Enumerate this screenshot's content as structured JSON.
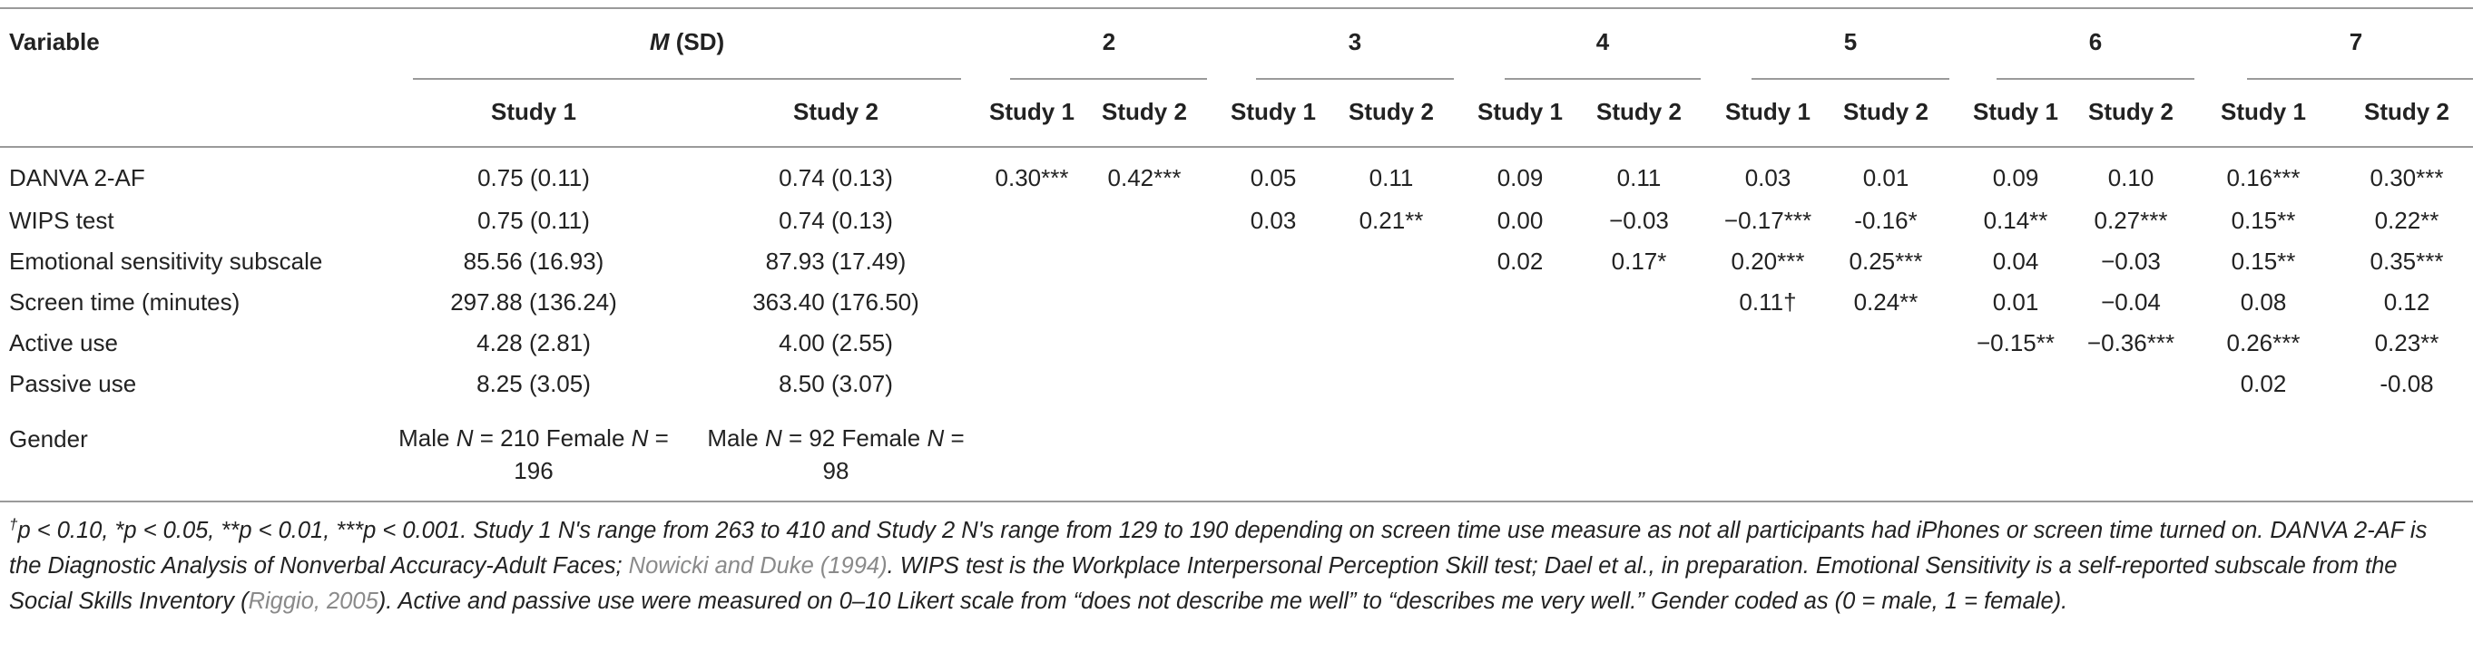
{
  "header": {
    "variable_label": "Variable",
    "msd_prefix": "M",
    "msd_suffix": " (SD)",
    "group_2": "2",
    "group_3": "3",
    "group_4": "4",
    "group_5": "5",
    "group_6": "6",
    "group_7": "7",
    "study1": "Study 1",
    "study2": "Study 2"
  },
  "rows": [
    {
      "variable": "DANVA 2-AF",
      "m1": "0.75 (0.11)",
      "m2": "0.74 (0.13)",
      "cells": [
        "0.30***",
        "0.42***",
        "0.05",
        "0.11",
        "0.09",
        "0.11",
        "0.03",
        "0.01",
        "0.09",
        "0.10",
        "0.16***",
        "0.30***"
      ]
    },
    {
      "variable": "WIPS test",
      "m1": "0.75 (0.11)",
      "m2": "0.74 (0.13)",
      "cells": [
        "",
        "",
        "0.03",
        "0.21**",
        "0.00",
        "−0.03",
        "−0.17***",
        "-0.16*",
        "0.14**",
        "0.27***",
        "0.15**",
        "0.22**"
      ]
    },
    {
      "variable": "Emotional sensitivity subscale",
      "m1": "85.56 (16.93)",
      "m2": "87.93 (17.49)",
      "cells": [
        "",
        "",
        "",
        "",
        "0.02",
        "0.17*",
        "0.20***",
        "0.25***",
        "0.04",
        "−0.03",
        "0.15**",
        "0.35***"
      ]
    },
    {
      "variable": "Screen time (minutes)",
      "m1": "297.88 (136.24)",
      "m2": "363.40 (176.50)",
      "cells": [
        "",
        "",
        "",
        "",
        "",
        "",
        "0.11†",
        "0.24**",
        "0.01",
        "−0.04",
        "0.08",
        "0.12"
      ]
    },
    {
      "variable": "Active use",
      "m1": "4.28 (2.81)",
      "m2": "4.00 (2.55)",
      "cells": [
        "",
        "",
        "",
        "",
        "",
        "",
        "",
        "",
        "−0.15**",
        "−0.36***",
        "0.26***",
        "0.23**"
      ]
    },
    {
      "variable": "Passive use",
      "m1": "8.25 (3.05)",
      "m2": "8.50 (3.07)",
      "cells": [
        "",
        "",
        "",
        "",
        "",
        "",
        "",
        "",
        "",
        "",
        "0.02",
        "-0.08"
      ]
    }
  ],
  "gender": {
    "variable": "Gender",
    "s1_a": "Male ",
    "s1_n1": "N",
    "s1_b": " = 210 Female",
    "s1_n2": "N",
    "s1_c": " = 196",
    "s2_a": "Male ",
    "s2_n1": "N",
    "s2_b": " = 92 Female",
    "s2_n2": "N",
    "s2_c": " = 98"
  },
  "footnote": {
    "sup_dagger": "†",
    "part1": "p < 0.10, *p < 0.05, **p < 0.01, ***p < 0.001. Study 1 N's range from 263 to 410 and Study 2 N's range from 129 to 190 depending on screen time use measure as not all participants had iPhones or screen time turned on. DANVA 2-AF is the Diagnostic Analysis of Nonverbal Accuracy-Adult Faces; ",
    "ref1": "Nowicki and Duke (1994)",
    "part2": ". WIPS test is the Workplace Interpersonal Perception Skill test; Dael et al., in preparation. Emotional Sensitivity is a self-reported subscale from the Social Skills Inventory (",
    "ref2": "Riggio, 2005",
    "part3": "). Active and passive use were measured on 0–10 Likert scale from “does not describe me well” to “describes me very well.” Gender coded as (0 = male, 1 = female)."
  }
}
